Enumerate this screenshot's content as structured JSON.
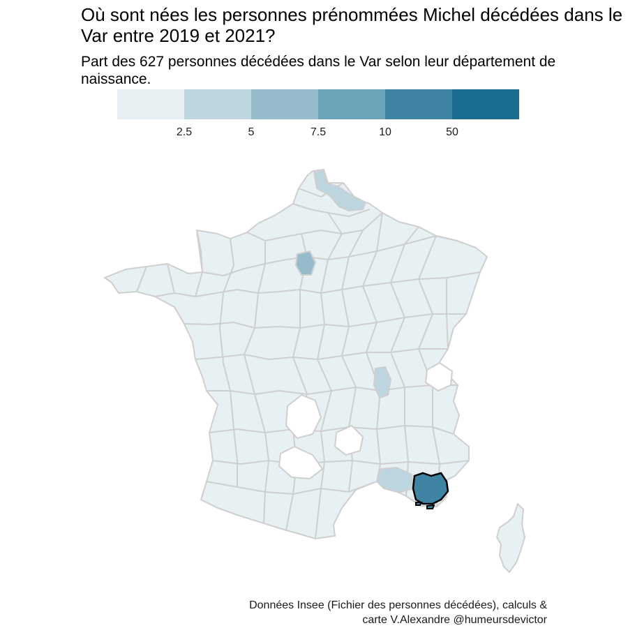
{
  "title": "Où sont nées les personnes prénommées Michel décédées dans le Var entre 2019 et 2021?",
  "subtitle": "Part des 627 personnes décédées dans le Var selon leur département de naissance.",
  "legend": {
    "colors": [
      "#e7f0f3",
      "#bdd5df",
      "#96bccb",
      "#6ba3b9",
      "#3f85a3",
      "#1b6e8f"
    ],
    "ticks": [
      "2.5",
      "5",
      "7.5",
      "10",
      "50"
    ]
  },
  "map": {
    "empty_color": "#ffffff",
    "border_color": "#cfcfcf",
    "highlight_border": "#000000",
    "highlighted_department": "Var"
  },
  "caption": {
    "line1": "Données Insee (Fichier des personnes décédées), calculs &",
    "line2": "carte V.Alexandre @humeursdevictor"
  }
}
